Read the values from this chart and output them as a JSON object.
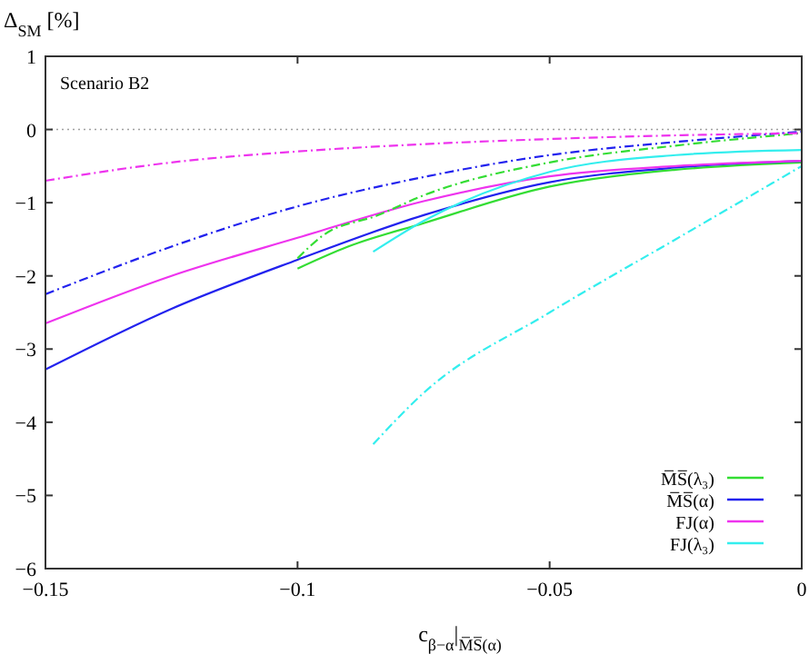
{
  "chart_data": {
    "type": "line",
    "ylabel": "Δ$_{SM}$ [%]",
    "xlabel": "c$_{β−α}$|$_{M̅S̅(α)}$",
    "annotations": [
      "Scenario B2"
    ],
    "xlim": [
      -0.15,
      0
    ],
    "ylim": [
      -6,
      1
    ],
    "xticks": [
      {
        "value": -0.15,
        "label": "−0.15"
      },
      {
        "value": -0.1,
        "label": "−0.1"
      },
      {
        "value": -0.05,
        "label": "−0.05"
      },
      0
    ],
    "yticks": [
      {
        "value": -6,
        "label": "−6"
      },
      {
        "value": -5,
        "label": "−5"
      },
      {
        "value": -4,
        "label": "−4"
      },
      {
        "value": -3,
        "label": "−3"
      },
      {
        "value": -2,
        "label": "−2"
      },
      {
        "value": -1,
        "label": "−1"
      },
      0,
      1
    ],
    "ref_lines": [
      {
        "axis": "y",
        "value": 0,
        "color": "#a0a0a0",
        "line_style": "dotted"
      }
    ],
    "legend": "bottom right",
    "grid": false,
    "line_style": "solid",
    "series": [
      {
        "name": "M̅S̅(λ₃)",
        "color": "#33dd33",
        "x": [
          -0.1,
          -0.09,
          -0.075,
          -0.05,
          -0.025,
          0
        ],
        "values": [
          -1.9,
          -1.6,
          -1.28,
          -0.78,
          -0.55,
          -0.45
        ]
      },
      {
        "name": "M̅S̅(α)",
        "color": "#2222ee",
        "x": [
          -0.15,
          -0.125,
          -0.1,
          -0.075,
          -0.05,
          -0.025,
          0
        ],
        "values": [
          -3.28,
          -2.45,
          -1.78,
          -1.17,
          -0.72,
          -0.52,
          -0.43
        ]
      },
      {
        "name": "FJ(α)",
        "color": "#ee33ee",
        "x": [
          -0.15,
          -0.125,
          -0.1,
          -0.075,
          -0.05,
          -0.025,
          0
        ],
        "values": [
          -2.65,
          -2.0,
          -1.48,
          -0.98,
          -0.64,
          -0.5,
          -0.43
        ]
      },
      {
        "name": "FJ(λ₃)",
        "color": "#33eeee",
        "x": [
          -0.085,
          -0.075,
          -0.05,
          -0.025,
          0
        ],
        "values": [
          -1.67,
          -1.25,
          -0.58,
          -0.35,
          -0.28
        ]
      },
      {
        "color": "#33dd33",
        "line_style": "dashed",
        "x": [
          -0.1,
          -0.095,
          -0.084,
          -0.075,
          -0.05,
          -0.025,
          0
        ],
        "values": [
          -1.76,
          -1.45,
          -1.17,
          -0.9,
          -0.45,
          -0.22,
          -0.05
        ]
      },
      {
        "color": "#2222ee",
        "line_style": "dashed",
        "x": [
          -0.15,
          -0.125,
          -0.1,
          -0.075,
          -0.05,
          -0.025,
          0
        ],
        "values": [
          -2.25,
          -1.6,
          -1.05,
          -0.65,
          -0.35,
          -0.17,
          -0.03
        ]
      },
      {
        "color": "#ee33ee",
        "line_style": "dashed",
        "x": [
          -0.15,
          -0.125,
          -0.1,
          -0.075,
          -0.05,
          -0.025,
          0
        ],
        "values": [
          -0.7,
          -0.45,
          -0.3,
          -0.2,
          -0.13,
          -0.08,
          -0.05
        ]
      },
      {
        "color": "#33eeee",
        "line_style": "dashed",
        "x": [
          -0.085,
          -0.075,
          -0.05,
          -0.025,
          -0.01,
          0
        ],
        "values": [
          -4.3,
          -3.6,
          -2.5,
          -1.5,
          -0.9,
          -0.5
        ]
      }
    ]
  }
}
